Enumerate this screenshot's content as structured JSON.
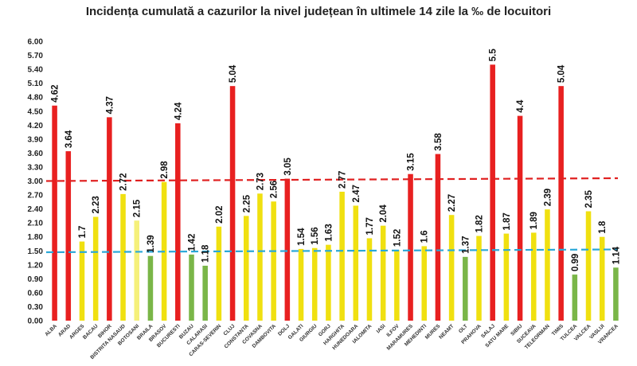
{
  "chart_data": {
    "type": "bar",
    "title": "Incidența cumulată a cazurilor la nivel județean în ultimele 14 zile la ‰ de locuitori",
    "categories": [
      "ALBA",
      "ARAD",
      "ARGES",
      "BACAU",
      "BIHOR",
      "BISTRITA NASAUD",
      "BOTOSANI",
      "BRAILA",
      "BRASOV",
      "BUCURESTI",
      "BUZAU",
      "CALARASI",
      "CARAS-SEVERIN",
      "CLUJ",
      "CONSTANTA",
      "COVASNA",
      "DAMBOVITA",
      "DOLJ",
      "GALATI",
      "GIURGIU",
      "GORJ",
      "HARGHITA",
      "HUNEDOARA",
      "IALOMITA",
      "IASI",
      "ILFOV",
      "MARAMURES",
      "MEHEDINTI",
      "MURES",
      "NEAMT",
      "OLT",
      "PRAHOVA",
      "SALAJ",
      "SATU MARE",
      "SIBIU",
      "SUCEAVA",
      "TELEORMAN",
      "TIMIS",
      "TULCEA",
      "VALCEA",
      "VASLUI",
      "VRANCEA"
    ],
    "values": [
      4.62,
      3.64,
      1.7,
      2.23,
      4.37,
      2.72,
      2.15,
      1.39,
      2.98,
      4.24,
      1.42,
      1.18,
      2.02,
      5.04,
      2.25,
      2.73,
      2.56,
      3.05,
      1.54,
      1.56,
      1.63,
      2.77,
      2.47,
      1.77,
      2.04,
      1.52,
      3.15,
      1.6,
      3.58,
      2.27,
      1.37,
      1.82,
      5.5,
      1.87,
      4.4,
      1.89,
      2.39,
      5.04,
      0.99,
      2.35,
      1.8,
      1.14
    ],
    "value_labels": [
      "4.62",
      "3.64",
      "1.7",
      "2.23",
      "4.37",
      "2.72",
      "2.15",
      "1.39",
      "2.98",
      "4.24",
      "1.42",
      "1.18",
      "2.02",
      "5.04",
      "2.25",
      "2.73",
      "2.56",
      "3.05",
      "1.54",
      "1.56",
      "1.63",
      "2.77",
      "2.47",
      "1.77",
      "2.04",
      "1.52",
      "3.15",
      "1.6",
      "3.58",
      "2.27",
      "1.37",
      "1.82",
      "5.5",
      "1.87",
      "4.4",
      "1.89",
      "2.39",
      "5.04",
      "0.99",
      "2.35",
      "1.8",
      "1.14"
    ],
    "bar_colors": [
      "#e82020",
      "#e82020",
      "#f0e010",
      "#f0e010",
      "#e82020",
      "#f0e010",
      "#f5f07a",
      "#7ab648",
      "#f0e010",
      "#e82020",
      "#7ab648",
      "#7ab648",
      "#f0e010",
      "#e82020",
      "#f0e010",
      "#f0e010",
      "#f0e010",
      "#e82020",
      "#f0e010",
      "#f0e010",
      "#f0e010",
      "#f0e010",
      "#f0e010",
      "#f0e010",
      "#f0e010",
      "#f0e010",
      "#e82020",
      "#f0e010",
      "#e82020",
      "#f0e010",
      "#7ab648",
      "#f0e010",
      "#e82020",
      "#f0e010",
      "#e82020",
      "#f0e010",
      "#f0e010",
      "#e82020",
      "#7ab648",
      "#f0e010",
      "#f0e010",
      "#7ab648"
    ],
    "yticks": [
      "0.00",
      "0.30",
      "0.60",
      "0.90",
      "1.20",
      "1.50",
      "1.80",
      "2.10",
      "2.40",
      "2.70",
      "3.00",
      "3.30",
      "3.60",
      "3.90",
      "4.20",
      "4.50",
      "4.80",
      "5.10",
      "5.40",
      "5.70",
      "6.00"
    ],
    "ylim": [
      0,
      6
    ],
    "reference_lines": [
      {
        "from": 3.0,
        "to": 3.06,
        "color": "#e02020",
        "style": "dashed"
      },
      {
        "from": 1.47,
        "to": 1.53,
        "color": "#2aa8d8",
        "style": "dashed"
      }
    ],
    "grid": false,
    "xlabel": "",
    "ylabel": ""
  }
}
